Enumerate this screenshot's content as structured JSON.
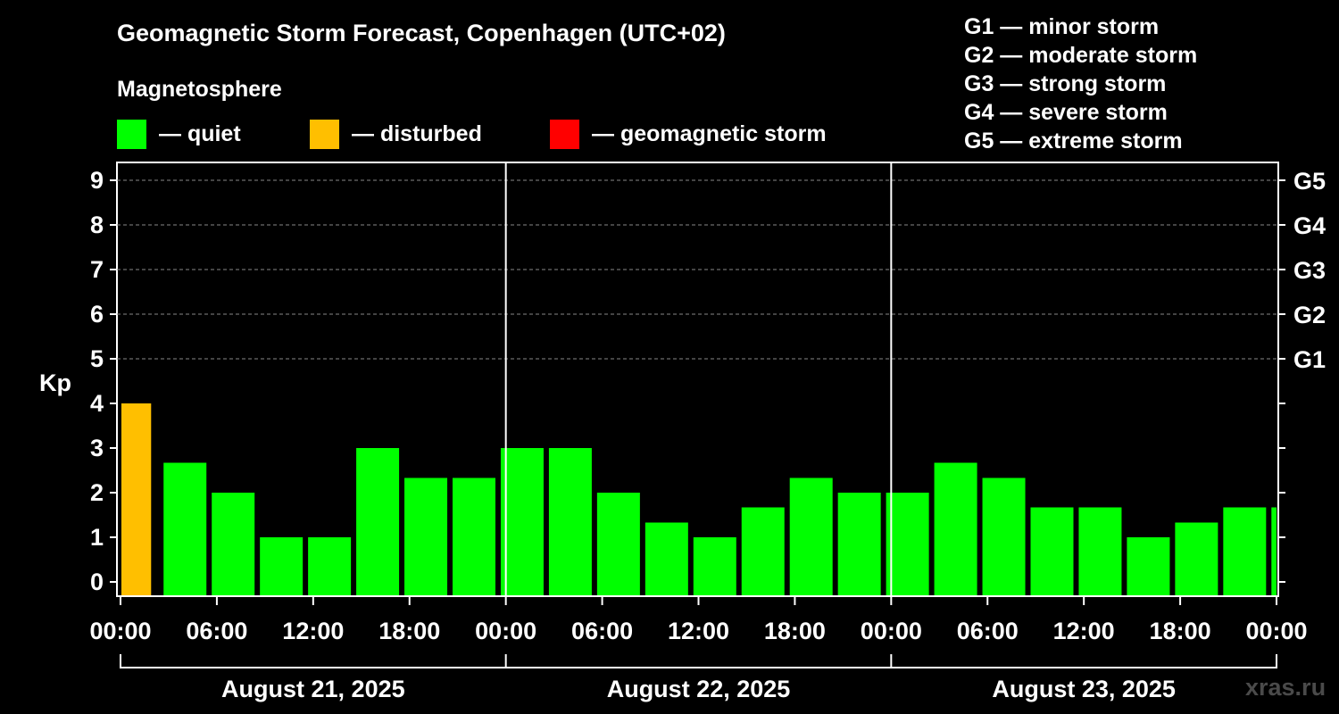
{
  "header": {
    "title": "Geomagnetic Storm Forecast, Copenhagen (UTC+02)",
    "subtitle": "Magnetosphere"
  },
  "legend": [
    {
      "label": "— quiet",
      "color": "#00ff00"
    },
    {
      "label": "— disturbed",
      "color": "#ffbf00"
    },
    {
      "label": "— geomagnetic storm",
      "color": "#ff0000"
    }
  ],
  "g_scale": [
    "G1 — minor storm",
    "G2 — moderate storm",
    "G3 — strong storm",
    "G4 — severe storm",
    "G5 — extreme storm"
  ],
  "watermark": "xras.ru",
  "chart_data": {
    "type": "bar",
    "ylabel": "Kp",
    "ylim": [
      0,
      9
    ],
    "y_ticks": [
      "0",
      "1",
      "2",
      "3",
      "4",
      "5",
      "6",
      "7",
      "8",
      "9"
    ],
    "right_axis_labels": [
      {
        "kp": 5,
        "label": "G1"
      },
      {
        "kp": 6,
        "label": "G2"
      },
      {
        "kp": 7,
        "label": "G3"
      },
      {
        "kp": 8,
        "label": "G4"
      },
      {
        "kp": 9,
        "label": "G5"
      }
    ],
    "x_tick_labels": [
      "00:00",
      "06:00",
      "12:00",
      "18:00",
      "00:00",
      "06:00",
      "12:00",
      "18:00",
      "00:00",
      "06:00",
      "12:00",
      "18:00",
      "00:00"
    ],
    "days": [
      "August 21, 2025",
      "August 22, 2025",
      "August 23, 2025"
    ],
    "interval_hours": 3,
    "start_hour": 1,
    "values": [
      4.0,
      2.67,
      2.0,
      1.0,
      1.0,
      3.0,
      2.33,
      2.33,
      3.0,
      3.0,
      2.0,
      1.33,
      1.0,
      1.67,
      2.33,
      2.0,
      2.0,
      2.67,
      2.33,
      1.67,
      1.67,
      1.0,
      1.33,
      1.67,
      1.67
    ],
    "colors": {
      "quiet": "#00ff00",
      "disturbed": "#ffbf00",
      "storm": "#ff0000"
    },
    "grid": true
  }
}
